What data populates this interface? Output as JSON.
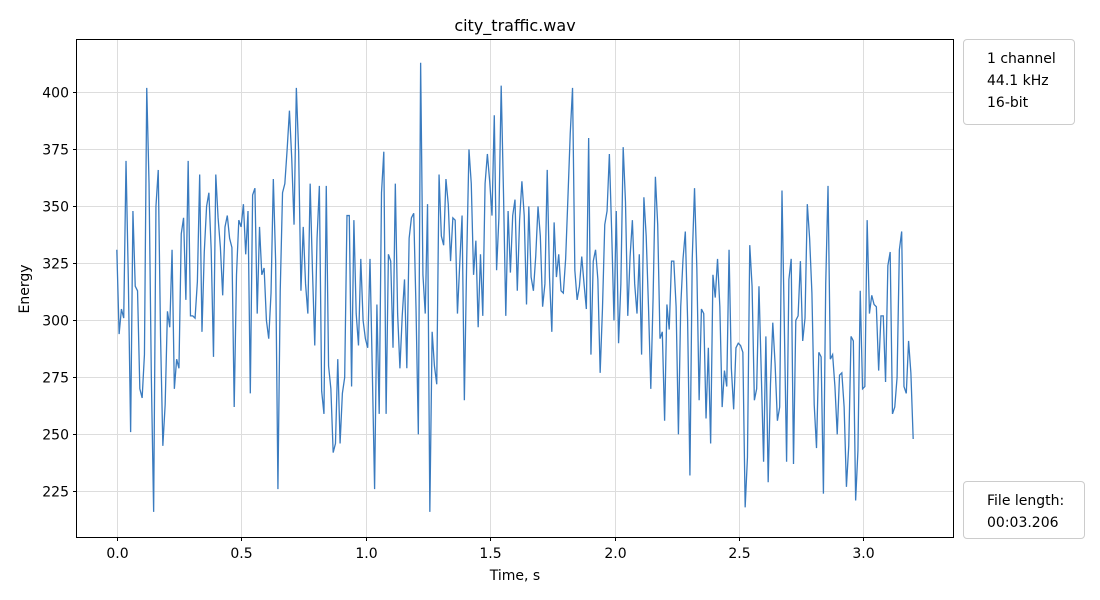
{
  "chart_data": {
    "type": "line",
    "title": "city_traffic.wav",
    "xlabel": "Time, s",
    "ylabel": "Energy",
    "xlim": [
      -0.16,
      3.36
    ],
    "ylim": [
      205,
      423
    ],
    "x_ticks": [
      0.0,
      0.5,
      1.0,
      1.5,
      2.0,
      2.5,
      3.0
    ],
    "x_tick_labels": [
      "0.0",
      "0.5",
      "1.0",
      "1.5",
      "2.0",
      "2.5",
      "3.0"
    ],
    "y_ticks": [
      225,
      250,
      275,
      300,
      325,
      350,
      375,
      400
    ],
    "y_tick_labels": [
      "225",
      "250",
      "275",
      "300",
      "325",
      "350",
      "375",
      "400"
    ],
    "grid": true,
    "series": [
      {
        "color": "#3a7bbf",
        "x_start": 0.0,
        "x_end": 3.2,
        "values": [
          331,
          294,
          305,
          301,
          370,
          318,
          251,
          348,
          315,
          313,
          270,
          266,
          285,
          402,
          360,
          275,
          216,
          350,
          366,
          293,
          245,
          263,
          304,
          297,
          331,
          270,
          283,
          279,
          338,
          345,
          309,
          370,
          302,
          302,
          301,
          317,
          364,
          295,
          330,
          350,
          356,
          331,
          284,
          364,
          345,
          332,
          311,
          341,
          346,
          336,
          332,
          262,
          320,
          344,
          341,
          351,
          329,
          348,
          268,
          355,
          358,
          303,
          341,
          320,
          323,
          300,
          292,
          312,
          362,
          326,
          226,
          313,
          356,
          360,
          375,
          392,
          371,
          342,
          402,
          374,
          313,
          341,
          316,
          303,
          360,
          322,
          289,
          336,
          359,
          269,
          259,
          359,
          280,
          270,
          242,
          246,
          283,
          246,
          268,
          275,
          346,
          346,
          271,
          344,
          303,
          289,
          327,
          300,
          292,
          288,
          327,
          278,
          226,
          307,
          259,
          356,
          374,
          259,
          329,
          326,
          288,
          360,
          303,
          279,
          302,
          318,
          279,
          336,
          345,
          347,
          305,
          250,
          413,
          320,
          303,
          351,
          216,
          295,
          280,
          272,
          364,
          337,
          333,
          362,
          351,
          326,
          345,
          344,
          303,
          325,
          346,
          265,
          326,
          375,
          360,
          320,
          335,
          297,
          329,
          302,
          360,
          373,
          361,
          346,
          390,
          322,
          345,
          403,
          356,
          302,
          348,
          321,
          346,
          353,
          313,
          344,
          361,
          346,
          307,
          350,
          319,
          313,
          328,
          350,
          337,
          306,
          316,
          366,
          319,
          295,
          343,
          319,
          329,
          313,
          312,
          327,
          354,
          382,
          402,
          322,
          309,
          315,
          328,
          316,
          305,
          380,
          285,
          326,
          331,
          318,
          277,
          305,
          342,
          348,
          373,
          339,
          300,
          348,
          290,
          316,
          376,
          352,
          302,
          328,
          344,
          316,
          303,
          329,
          285,
          354,
          337,
          306,
          270,
          310,
          363,
          342,
          292,
          295,
          256,
          307,
          296,
          326,
          326,
          306,
          250,
          306,
          327,
          339,
          300,
          232,
          327,
          358,
          323,
          265,
          305,
          303,
          257,
          288,
          246,
          320,
          310,
          327,
          306,
          262,
          278,
          271,
          331,
          279,
          261,
          288,
          290,
          289,
          286,
          218,
          240,
          333,
          315,
          265,
          270,
          315,
          277,
          238,
          293,
          229,
          272,
          299,
          281,
          256,
          262,
          357,
          299,
          238,
          318,
          327,
          237,
          300,
          302,
          326,
          291,
          301,
          351,
          336,
          312,
          263,
          244,
          286,
          284,
          224,
          316,
          359,
          283,
          285,
          271,
          250,
          276,
          277,
          262,
          227,
          245,
          293,
          291,
          221,
          243,
          313,
          270,
          271,
          344,
          303,
          311,
          307,
          306,
          278,
          302,
          302,
          273,
          324,
          330,
          259,
          262,
          275,
          331,
          339,
          271,
          268,
          291,
          277,
          248
        ]
      }
    ]
  },
  "legend": {
    "properties": [
      "1 channel",
      "44.1 kHz",
      "16-bit"
    ],
    "file_length_label": "File length:",
    "file_length_value": "00:03.206"
  }
}
